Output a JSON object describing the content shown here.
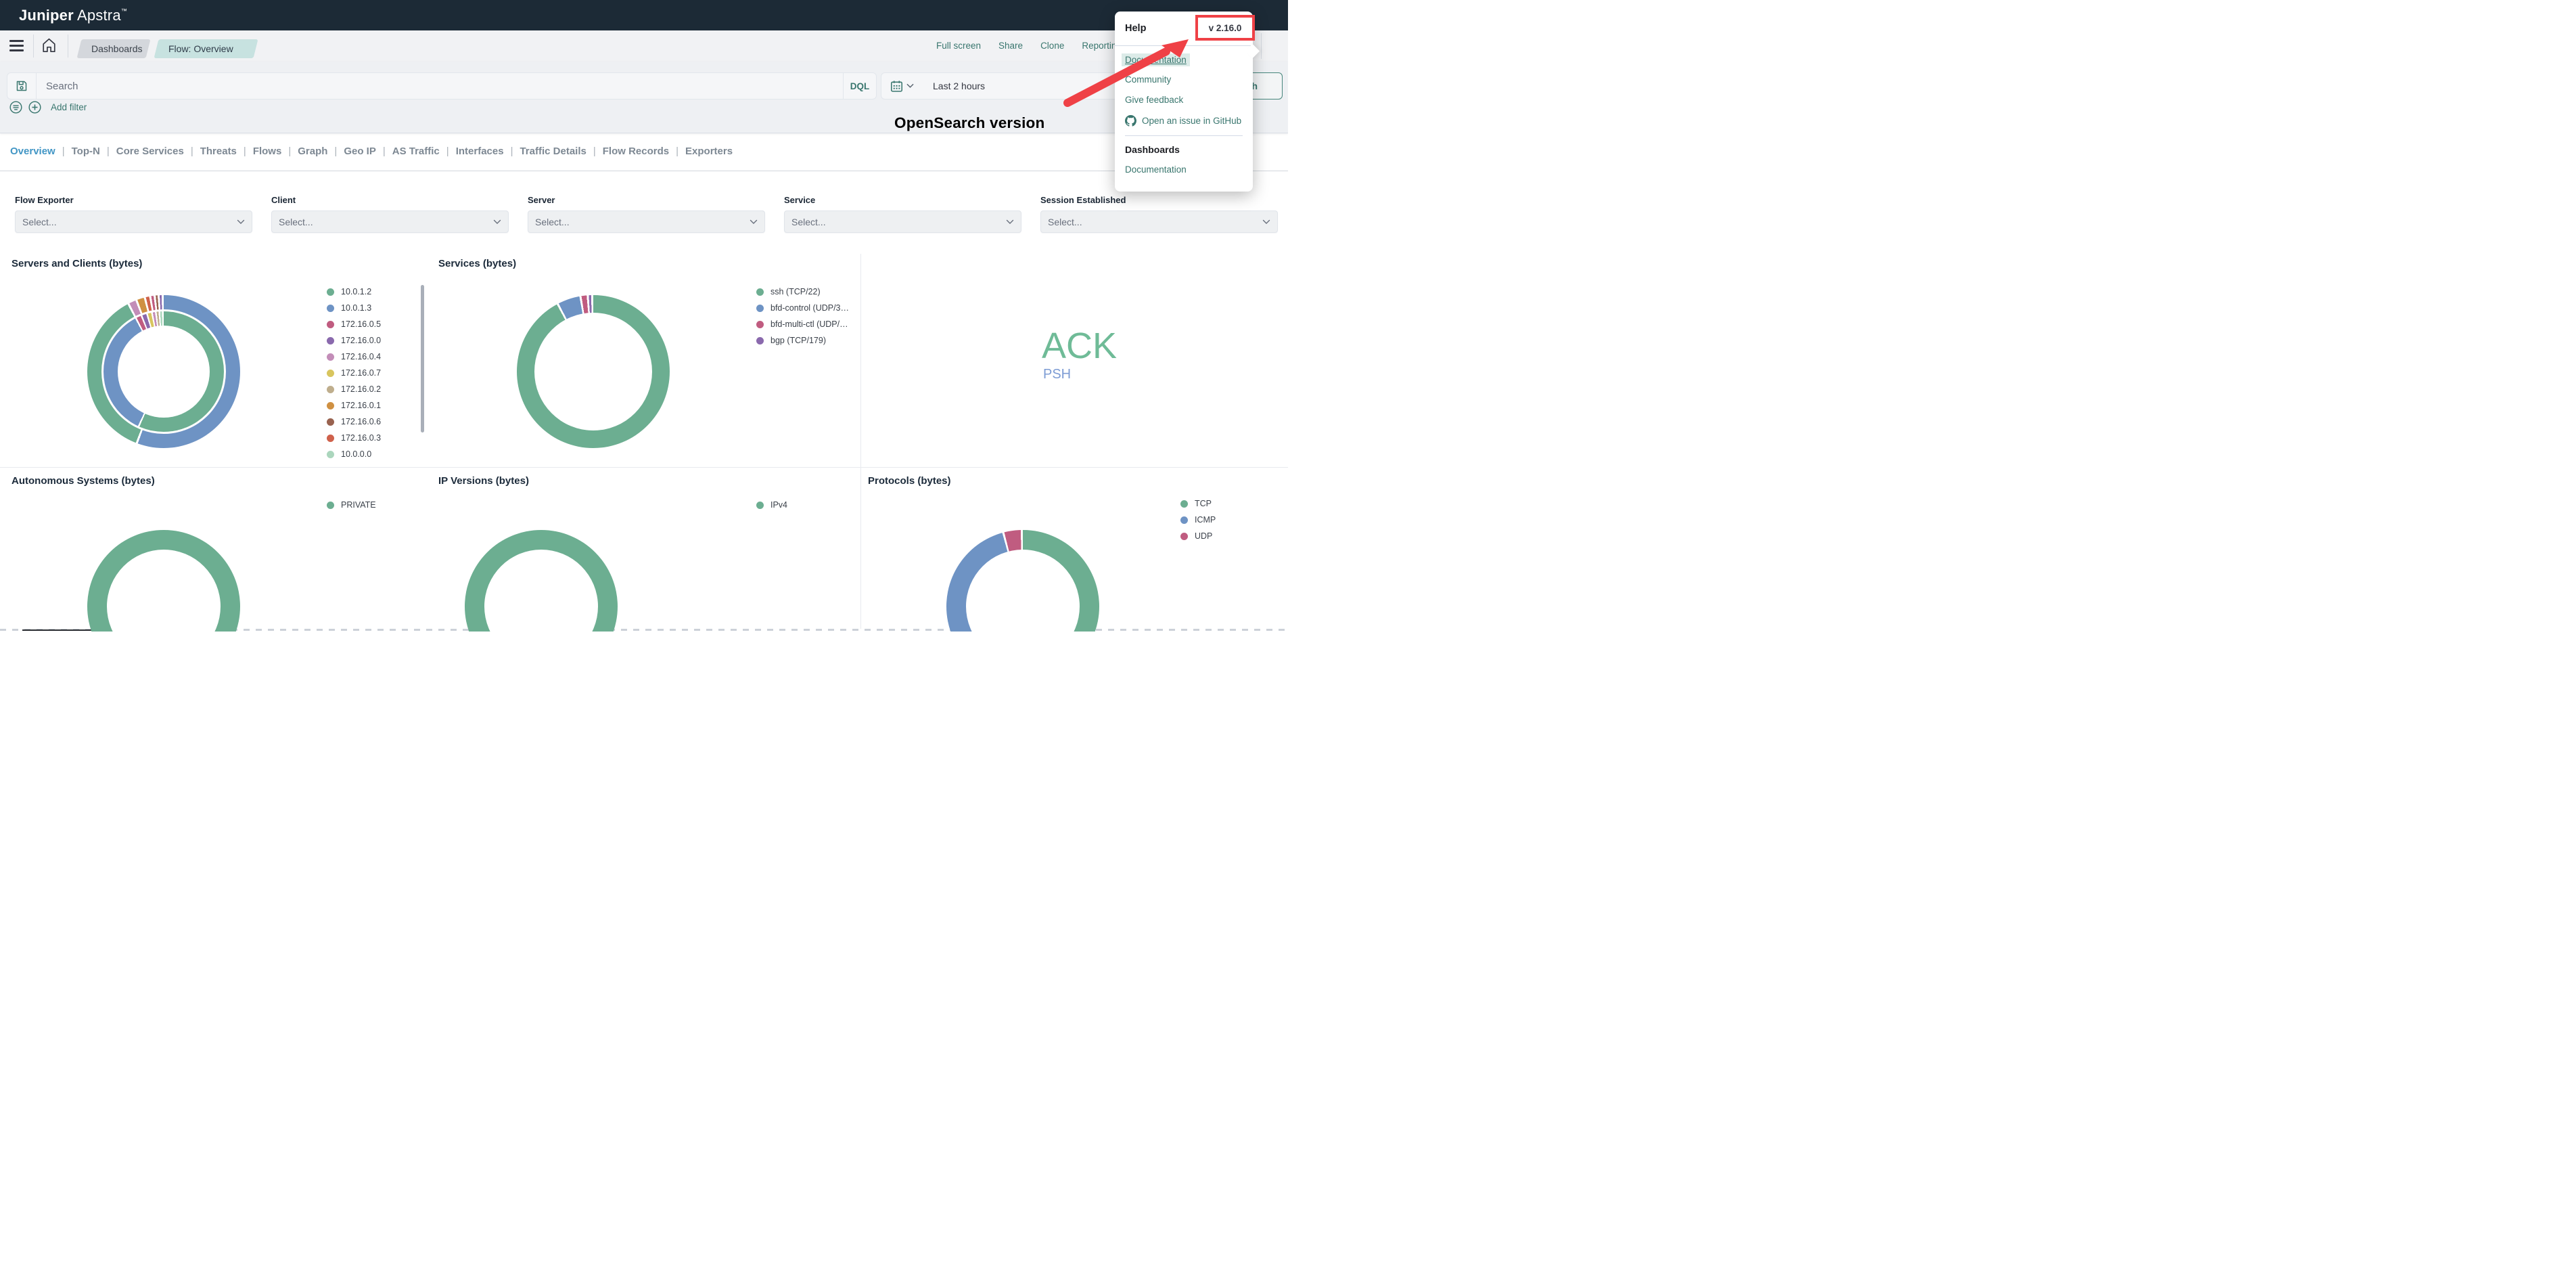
{
  "app": {
    "brand_bold": "Juniper",
    "brand_regular": "Apstra",
    "trademark": "™"
  },
  "nav": {
    "breadcrumbs": [
      {
        "label": "Dashboards"
      },
      {
        "label": "Flow: Overview"
      }
    ],
    "menu_items": [
      {
        "label": "Full screen"
      },
      {
        "label": "Share"
      },
      {
        "label": "Clone"
      },
      {
        "label": "Reporting"
      }
    ],
    "help_icon_glyph": "?"
  },
  "search": {
    "placeholder": "Search",
    "dql_label": "DQL",
    "time_range": "Last 2 hours",
    "refresh_label": "Refresh",
    "add_filter_label": "Add filter"
  },
  "annotation": {
    "label": "OpenSearch version"
  },
  "help_popover": {
    "title": "Help",
    "version": "v 2.16.0",
    "links": [
      "Documentation",
      "Community",
      "Give feedback",
      "Open an issue in GitHub"
    ],
    "section_title": "Dashboards",
    "section_links": [
      "Documentation"
    ]
  },
  "tabs": {
    "items": [
      {
        "label": "Overview",
        "active": true
      },
      {
        "label": "Top-N"
      },
      {
        "label": "Core Services"
      },
      {
        "label": "Threats"
      },
      {
        "label": "Flows"
      },
      {
        "label": "Graph"
      },
      {
        "label": "Geo IP"
      },
      {
        "label": "AS Traffic"
      },
      {
        "label": "Interfaces"
      },
      {
        "label": "Traffic Details"
      },
      {
        "label": "Flow Records"
      },
      {
        "label": "Exporters"
      }
    ]
  },
  "filters": {
    "items": [
      {
        "label": "Flow Exporter",
        "placeholder": "Select..."
      },
      {
        "label": "Client",
        "placeholder": "Select..."
      },
      {
        "label": "Server",
        "placeholder": "Select..."
      },
      {
        "label": "Service",
        "placeholder": "Select..."
      },
      {
        "label": "Session Established",
        "placeholder": "Select..."
      }
    ]
  },
  "colors": {
    "accent_teal": "#39766e",
    "active_tab_blue": "#4296c5",
    "annotation_red": "#ef4146",
    "navy_header": "#1c2a36"
  },
  "chart_data": [
    {
      "id": "servers_clients",
      "type": "donut",
      "title": "Servers and Clients (bytes)",
      "legend": [
        {
          "label": "10.0.1.2",
          "color": "#6cae91"
        },
        {
          "label": "10.0.1.3",
          "color": "#6e93c4"
        },
        {
          "label": "172.16.0.5",
          "color": "#c05c80"
        },
        {
          "label": "172.16.0.0",
          "color": "#8a69ad"
        },
        {
          "label": "172.16.0.4",
          "color": "#c38db8"
        },
        {
          "label": "172.16.0.7",
          "color": "#d8c55e"
        },
        {
          "label": "172.16.0.2",
          "color": "#bfae8d"
        },
        {
          "label": "172.16.0.1",
          "color": "#cf9042"
        },
        {
          "label": "172.16.0.6",
          "color": "#99624f"
        },
        {
          "label": "172.16.0.3",
          "color": "#cf614b"
        },
        {
          "label": "10.0.0.0",
          "color": "#abd6bd"
        }
      ],
      "rings": [
        {
          "name": "outer",
          "gap_deg": 1.6,
          "segments": [
            {
              "label": "10.0.1.3",
              "color": "#6e93c4",
              "value": 56.0
            },
            {
              "label": "10.0.1.2",
              "color": "#6cae91",
              "value": 36.5
            },
            {
              "label": "172.16.0.4",
              "color": "#c38db8",
              "value": 1.4
            },
            {
              "label": "172.16.0.1",
              "color": "#cf9042",
              "value": 1.4
            },
            {
              "label": "172.16.0.3",
              "color": "#cf614b",
              "value": 0.7
            },
            {
              "label": "172.16.0.5",
              "color": "#c05c80",
              "value": 0.5
            },
            {
              "label": "172.16.0.6",
              "color": "#99624f",
              "value": 0.4
            },
            {
              "label": "172.16.0.0",
              "color": "#8a69ad",
              "value": 0.4
            }
          ]
        },
        {
          "name": "inner",
          "gap_deg": 1.6,
          "segments": [
            {
              "label": "10.0.1.2",
              "color": "#6cae91",
              "value": 57.0
            },
            {
              "label": "10.0.1.3",
              "color": "#6e93c4",
              "value": 35.3
            },
            {
              "label": "172.16.0.5",
              "color": "#c05c80",
              "value": 1.2
            },
            {
              "label": "172.16.0.0",
              "color": "#8a69ad",
              "value": 1.1
            },
            {
              "label": "172.16.0.7",
              "color": "#d8c55e",
              "value": 0.9
            },
            {
              "label": "172.16.0.4",
              "color": "#c38db8",
              "value": 0.6
            },
            {
              "label": "172.16.0.2",
              "color": "#bfae8d",
              "value": 0.5
            },
            {
              "label": "10.0.0.0",
              "color": "#abd6bd",
              "value": 0.5
            }
          ]
        }
      ]
    },
    {
      "id": "services",
      "type": "donut",
      "title": "Services (bytes)",
      "legend": [
        {
          "label": "ssh (TCP/22)",
          "color": "#6cae91"
        },
        {
          "label": "bfd-control (UDP/3…",
          "color": "#6e93c4"
        },
        {
          "label": "bfd-multi-ctl (UDP/…",
          "color": "#c05c80"
        },
        {
          "label": "bgp (TCP/179)",
          "color": "#8a69ad"
        }
      ],
      "rings": [
        {
          "name": "single",
          "gap_deg": 1.6,
          "segments": [
            {
              "label": "ssh (TCP/22)",
              "color": "#6cae91",
              "value": 93.0
            },
            {
              "label": "bfd-control (UDP/3…",
              "color": "#6e93c4",
              "value": 4.6
            },
            {
              "label": "bfd-multi-ctl (UDP/…",
              "color": "#c05c80",
              "value": 1.1
            },
            {
              "label": "bgp (TCP/179)",
              "color": "#8a69ad",
              "value": 0.5
            }
          ]
        }
      ]
    },
    {
      "id": "tcp_flags",
      "type": "tag_cloud",
      "tags": [
        {
          "text": "ACK",
          "color": "#6fbb97",
          "size": 54
        },
        {
          "text": "PSH",
          "color": "#7d9cd4",
          "size": 20
        }
      ]
    },
    {
      "id": "autonomous_systems",
      "type": "donut",
      "title": "Autonomous Systems (bytes)",
      "legend": [
        {
          "label": "PRIVATE",
          "color": "#6cae91"
        }
      ],
      "rings": [
        {
          "name": "single",
          "segments": [
            {
              "label": "PRIVATE",
              "color": "#6cae91",
              "value": 100
            }
          ]
        }
      ]
    },
    {
      "id": "ip_versions",
      "type": "donut",
      "title": "IP Versions (bytes)",
      "legend": [
        {
          "label": "IPv4",
          "color": "#6cae91"
        }
      ],
      "rings": [
        {
          "name": "single",
          "segments": [
            {
              "label": "IPv4",
              "color": "#6cae91",
              "value": 100
            }
          ]
        }
      ]
    },
    {
      "id": "protocols",
      "type": "donut",
      "title": "Protocols (bytes)",
      "legend": [
        {
          "label": "TCP",
          "color": "#6cae91"
        },
        {
          "label": "ICMP",
          "color": "#6e93c4"
        },
        {
          "label": "UDP",
          "color": "#c05c80"
        }
      ],
      "rings": [
        {
          "name": "single",
          "gap_deg": 1.6,
          "segments": [
            {
              "label": "TCP",
              "color": "#6cae91",
              "value": 55.0
            },
            {
              "label": "ICMP",
              "color": "#6e93c4",
              "value": 41.5
            },
            {
              "label": "UDP",
              "color": "#c05c80",
              "value": 3.5
            }
          ]
        }
      ]
    }
  ]
}
